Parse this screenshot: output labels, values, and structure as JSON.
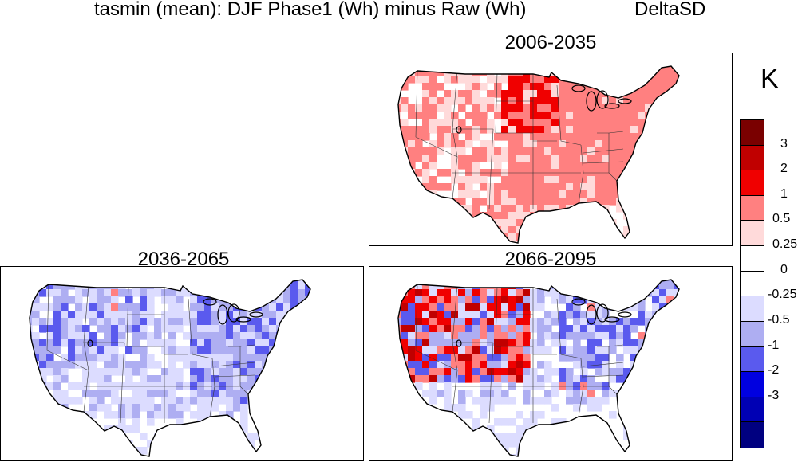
{
  "title": {
    "main": "tasmin (mean): DJF Phase1 (Wh) minus Raw (Wh)",
    "model": "DeltaSD"
  },
  "panels": [
    {
      "key": "p1",
      "label": "2006-2035",
      "tone": "warm"
    },
    {
      "key": "p2",
      "label": "2036-2065",
      "tone": "cool"
    },
    {
      "key": "p3",
      "label": "2066-2095",
      "tone": "mixed"
    }
  ],
  "colorbar": {
    "units": "K",
    "labels": [
      "3",
      "2",
      "1",
      "0.5",
      "0.25",
      "0",
      "-0.25",
      "-0.5",
      "-1",
      "-2",
      "-3"
    ],
    "colors": [
      "#7a0000",
      "#c00000",
      "#f00000",
      "#ff8080",
      "#ffdada",
      "#ffffff",
      "#ffffff",
      "#dcdcff",
      "#aeaef2",
      "#5a5aee",
      "#0000e0",
      "#0000b4",
      "#000080"
    ]
  }
}
